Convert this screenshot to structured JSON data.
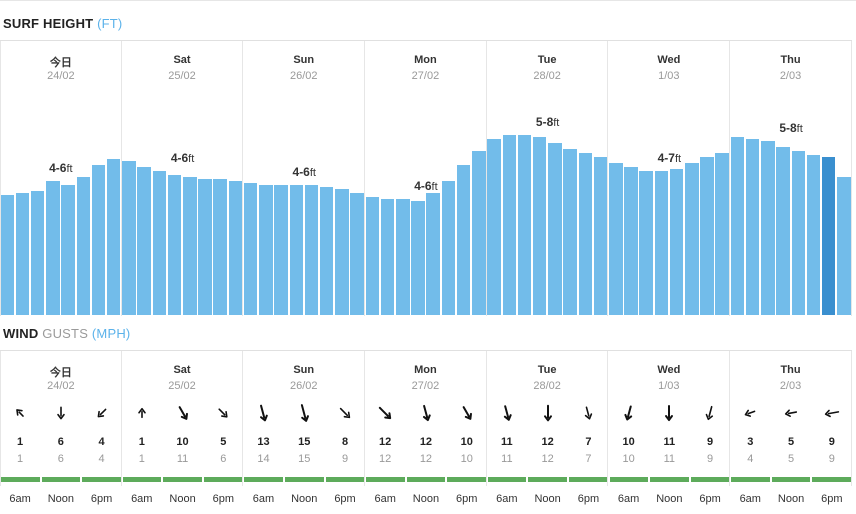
{
  "surf": {
    "title": "SURF HEIGHT",
    "unit": "(FT)"
  },
  "wind": {
    "title_strong": "WIND",
    "title_muted": "GUSTS",
    "unit": "(MPH)"
  },
  "colors": {
    "bar": "#72bcea",
    "bar_highlight": "#3a8fcf",
    "unit_blue": "#5bb2ea",
    "good_wind": "#5dab5b"
  },
  "days": [
    {
      "name": "今日",
      "date": "24/02",
      "range": "4-6",
      "unit": "ft",
      "bars": [
        3.0,
        3.05,
        3.1,
        3.35,
        3.25,
        3.45,
        3.75,
        3.9
      ],
      "gusts": [
        1,
        6,
        4
      ],
      "winds": [
        1,
        6,
        4
      ],
      "directions": [
        135,
        0,
        45
      ],
      "times": [
        "6am",
        "Noon",
        "6pm"
      ]
    },
    {
      "name": "Sat",
      "date": "25/02",
      "range": "4-6",
      "unit": "ft",
      "bars": [
        3.85,
        3.7,
        3.6,
        3.5,
        3.45,
        3.4,
        3.4,
        3.35
      ],
      "gusts": [
        1,
        10,
        5
      ],
      "winds": [
        1,
        11,
        6
      ],
      "directions": [
        180,
        330,
        315
      ],
      "times": [
        "6am",
        "Noon",
        "6pm"
      ]
    },
    {
      "name": "Sun",
      "date": "26/02",
      "range": "4-6",
      "unit": "ft",
      "bars": [
        3.3,
        3.25,
        3.25,
        3.25,
        3.25,
        3.2,
        3.15,
        3.05
      ],
      "gusts": [
        13,
        15,
        8
      ],
      "winds": [
        14,
        15,
        9
      ],
      "directions": [
        345,
        345,
        315
      ],
      "times": [
        "6am",
        "Noon",
        "6pm"
      ]
    },
    {
      "name": "Mon",
      "date": "27/02",
      "range": "4-6",
      "unit": "ft",
      "bars": [
        2.95,
        2.9,
        2.9,
        2.85,
        3.05,
        3.35,
        3.75,
        4.1
      ],
      "gusts": [
        12,
        12,
        10
      ],
      "winds": [
        12,
        12,
        10
      ],
      "directions": [
        315,
        345,
        330
      ],
      "times": [
        "6am",
        "Noon",
        "6pm"
      ]
    },
    {
      "name": "Tue",
      "date": "28/02",
      "range": "5-8",
      "unit": "ft",
      "bars": [
        4.4,
        4.5,
        4.5,
        4.45,
        4.3,
        4.15,
        4.05,
        3.95
      ],
      "gusts": [
        11,
        12,
        7
      ],
      "winds": [
        11,
        12,
        7
      ],
      "directions": [
        345,
        0,
        345
      ],
      "times": [
        "6am",
        "Noon",
        "6pm"
      ]
    },
    {
      "name": "Wed",
      "date": "1/03",
      "range": "4-7",
      "unit": "ft",
      "bars": [
        3.8,
        3.7,
        3.6,
        3.6,
        3.65,
        3.8,
        3.95,
        4.05
      ],
      "gusts": [
        10,
        11,
        9
      ],
      "winds": [
        10,
        11,
        9
      ],
      "directions": [
        15,
        0,
        15
      ],
      "times": [
        "6am",
        "Noon",
        "6pm"
      ]
    },
    {
      "name": "Thu",
      "date": "2/03",
      "range": "5-8",
      "unit": "ft",
      "bars": [
        4.45,
        4.4,
        4.35,
        4.2,
        4.1,
        4.0,
        3.95,
        3.45
      ],
      "gusts": [
        3,
        5,
        9
      ],
      "winds": [
        4,
        5,
        9
      ],
      "directions": [
        70,
        80,
        80
      ],
      "times": [
        "6am",
        "Noon",
        "6pm"
      ]
    }
  ]
}
